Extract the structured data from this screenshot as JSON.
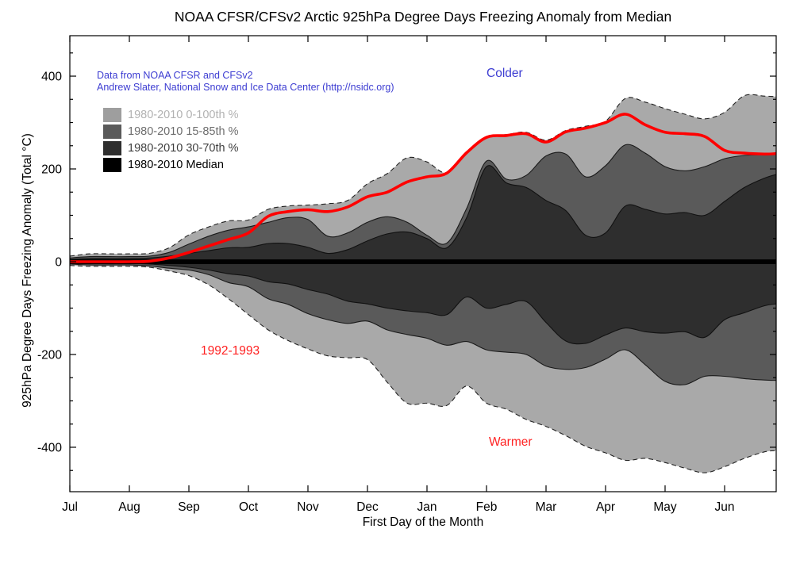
{
  "figure": {
    "title": "NOAA CFSR/CFSv2 Arctic 925hPa Degree Days Freezing Anomaly from Median",
    "xlabel": "First Day of the Month",
    "ylabel": "925hPa Degree Days Freezing Anomaly (Total °C)",
    "credit_line1": "Data from NOAA CFSR and CFSv2",
    "credit_line2": "Andrew Slater, National Snow and Ice Data Center (http://nsidc.org)",
    "credit_color": "#3d3dd2"
  },
  "annotations": {
    "colder": {
      "text": "Colder",
      "color": "#3d3dd2"
    },
    "warmer": {
      "text": "Warmer",
      "color": "#ff2222"
    },
    "season": {
      "text": "1992-1993",
      "color": "#ff2222"
    }
  },
  "legend": {
    "items": [
      {
        "label": "1980-2010 0-100th %",
        "swatch": "#9e9e9e",
        "text_color": "#b2b2b2"
      },
      {
        "label": "1980-2010 15-85th %",
        "swatch": "#5a5a5a",
        "text_color": "#6e6e6e"
      },
      {
        "label": "1980-2010 30-70th %",
        "swatch": "#2e2e2e",
        "text_color": "#3f3f3f"
      },
      {
        "label": "1980-2010 Median",
        "swatch": "#000000",
        "text_color": "#000000"
      }
    ]
  },
  "chart_data": {
    "type": "area",
    "title": "NOAA CFSR/CFSv2 Arctic 925hPa Degree Days Freezing Anomaly from Median",
    "xlabel": "First Day of the Month",
    "ylabel": "925hPa Degree Days Freezing Anomaly (Total °C)",
    "x_ticklabels": [
      "Jul",
      "Aug",
      "Sep",
      "Oct",
      "Nov",
      "Dec",
      "Jan",
      "Feb",
      "Mar",
      "Apr",
      "May",
      "Jun"
    ],
    "y_ticks": [
      -400,
      -200,
      0,
      200,
      400
    ],
    "y_minor_step": 50,
    "ylim": [
      -496,
      487
    ],
    "xlim_months": [
      0,
      11.867
    ],
    "grid": false,
    "legend_position": "upper-left",
    "t_months": [
      0,
      0.333,
      0.667,
      1.0,
      1.333,
      1.667,
      2.0,
      2.333,
      2.667,
      3.0,
      3.333,
      3.667,
      4.0,
      4.333,
      4.667,
      5.0,
      5.333,
      5.667,
      6.0,
      6.333,
      6.667,
      7.0,
      7.333,
      7.667,
      8.0,
      8.333,
      8.667,
      9.0,
      9.333,
      9.667,
      10.0,
      10.333,
      10.667,
      11.0,
      11.333,
      11.667,
      11.867
    ],
    "median": {
      "name": "1980-2010 Median",
      "color": "#000000",
      "value": 0,
      "thickness_units": 10
    },
    "bands": [
      {
        "name": "1980-2010 0-100th %",
        "color": "#a9a9a9",
        "edge": "#222222",
        "dashed": true,
        "hi": [
          12,
          17,
          17,
          17,
          18,
          30,
          58,
          75,
          88,
          90,
          113,
          120,
          122,
          125,
          132,
          168,
          190,
          224,
          215,
          192,
          237,
          269,
          274,
          279,
          262,
          283,
          292,
          303,
          352,
          344,
          330,
          318,
          308,
          322,
          358,
          357,
          356
        ],
        "lo": [
          -8,
          -10,
          -10,
          -10,
          -12,
          -20,
          -30,
          -50,
          -80,
          -114,
          -147,
          -170,
          -188,
          -203,
          -207,
          -211,
          -260,
          -305,
          -305,
          -310,
          -268,
          -305,
          -318,
          -340,
          -355,
          -375,
          -398,
          -412,
          -428,
          -424,
          -433,
          -445,
          -455,
          -442,
          -424,
          -410,
          -407
        ]
      },
      {
        "name": "1980-2010 15-85th %",
        "color": "#5a5a5a",
        "edge": "#1a1a1a",
        "dashed": false,
        "hi": [
          8,
          11,
          11,
          11,
          12,
          20,
          38,
          55,
          68,
          75,
          85,
          95,
          91,
          55,
          62,
          85,
          97,
          85,
          57,
          40,
          115,
          217,
          178,
          186,
          228,
          232,
          183,
          207,
          252,
          234,
          205,
          196,
          205,
          222,
          229,
          231,
          231
        ],
        "lo": [
          -5,
          -7,
          -7,
          -7,
          -9,
          -14,
          -18,
          -28,
          -45,
          -54,
          -80,
          -92,
          -112,
          -125,
          -133,
          -128,
          -147,
          -157,
          -165,
          -180,
          -172,
          -190,
          -195,
          -200,
          -225,
          -232,
          -228,
          -210,
          -190,
          -222,
          -258,
          -265,
          -247,
          -247,
          -252,
          -255,
          -256
        ]
      },
      {
        "name": "1980-2010 30-70th %",
        "color": "#2e2e2e",
        "edge": "#111111",
        "dashed": false,
        "hi": [
          5,
          7,
          7,
          7,
          8,
          12,
          18,
          24,
          30,
          31,
          39,
          39,
          31,
          18,
          26,
          45,
          60,
          64,
          50,
          30,
          95,
          205,
          170,
          160,
          132,
          110,
          57,
          62,
          120,
          113,
          103,
          106,
          100,
          130,
          160,
          180,
          188
        ],
        "lo": [
          -3,
          -4,
          -4,
          -4,
          -5,
          -8,
          -12,
          -18,
          -26,
          -31,
          -43,
          -48,
          -60,
          -70,
          -85,
          -91,
          -100,
          -106,
          -110,
          -114,
          -76,
          -100,
          -92,
          -86,
          -131,
          -171,
          -176,
          -158,
          -143,
          -151,
          -154,
          -151,
          -163,
          -125,
          -110,
          -95,
          -91
        ]
      }
    ],
    "series": [
      {
        "name": "1992-1993",
        "color": "#ff0000",
        "width": 3.6,
        "values": [
          0,
          0,
          0,
          0,
          1,
          8,
          20,
          34,
          48,
          62,
          98,
          108,
          112,
          108,
          118,
          140,
          150,
          172,
          183,
          191,
          235,
          268,
          272,
          276,
          258,
          280,
          288,
          300,
          318,
          295,
          279,
          276,
          270,
          240,
          234,
          232,
          233
        ]
      }
    ]
  }
}
